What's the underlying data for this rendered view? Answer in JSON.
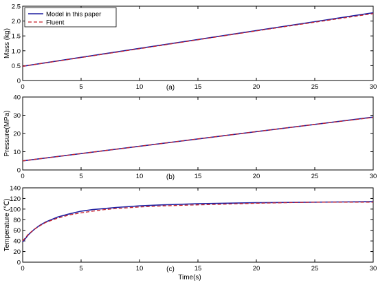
{
  "colors": {
    "model": "#1f1fa0",
    "fluent": "#c8202a",
    "axis": "#000000",
    "background": "#ffffff"
  },
  "chart_data": [
    {
      "type": "line",
      "panel_label": "(a)",
      "xlabel": "",
      "ylabel": "Mass (kg)",
      "xlim": [
        0,
        30
      ],
      "ylim": [
        0,
        2.5
      ],
      "xticks": [
        0,
        5,
        10,
        15,
        20,
        25,
        30
      ],
      "yticks": [
        0,
        0.5,
        1.0,
        1.5,
        2.0,
        2.5
      ],
      "ytick_labels": [
        "0",
        "0.5",
        "1.0",
        "1.5",
        "2.0",
        "2.5"
      ],
      "grid": false,
      "legend": {
        "placement": "top-left",
        "entries": [
          "Model in this paper",
          "Fluent"
        ]
      },
      "series": [
        {
          "name": "Model in this paper",
          "style": "solid",
          "x": [
            0,
            5,
            10,
            15,
            20,
            25,
            30
          ],
          "y": [
            0.48,
            0.78,
            1.08,
            1.38,
            1.68,
            1.98,
            2.28
          ]
        },
        {
          "name": "Fluent",
          "style": "dashed",
          "x": [
            0,
            5,
            10,
            15,
            20,
            25,
            30
          ],
          "y": [
            0.48,
            0.77,
            1.07,
            1.37,
            1.67,
            1.96,
            2.25
          ]
        }
      ]
    },
    {
      "type": "line",
      "panel_label": "(b)",
      "xlabel": "",
      "ylabel": "Pressure(MPa)",
      "xlim": [
        0,
        30
      ],
      "ylim": [
        0,
        40
      ],
      "xticks": [
        0,
        5,
        10,
        15,
        20,
        25,
        30
      ],
      "yticks": [
        0,
        10,
        20,
        30,
        40
      ],
      "ytick_labels": [
        "0",
        "10",
        "20",
        "30",
        "40"
      ],
      "grid": false,
      "series": [
        {
          "name": "Model in this paper",
          "style": "solid",
          "x": [
            0,
            5,
            10,
            15,
            20,
            25,
            30
          ],
          "y": [
            5.0,
            9.0,
            13.0,
            17.0,
            21.0,
            25.0,
            29.0
          ]
        },
        {
          "name": "Fluent",
          "style": "dashed",
          "x": [
            0,
            5,
            10,
            15,
            20,
            25,
            30
          ],
          "y": [
            5.0,
            9.0,
            13.0,
            17.0,
            21.0,
            25.0,
            28.8
          ]
        }
      ]
    },
    {
      "type": "line",
      "panel_label": "(c)",
      "xlabel": "Time(s)",
      "ylabel": "Temperature (℃)",
      "xlim": [
        0,
        30
      ],
      "ylim": [
        0,
        140
      ],
      "xticks": [
        0,
        5,
        10,
        15,
        20,
        25,
        30
      ],
      "yticks": [
        0,
        20,
        40,
        60,
        80,
        100,
        120,
        140
      ],
      "ytick_labels": [
        "0",
        "20",
        "40",
        "60",
        "80",
        "100",
        "120",
        "140"
      ],
      "grid": false,
      "series": [
        {
          "name": "Model in this paper",
          "style": "solid",
          "x": [
            0,
            0.5,
            1,
            1.5,
            2,
            3,
            4,
            5,
            6,
            7,
            8,
            10,
            12,
            15,
            20,
            25,
            30
          ],
          "y": [
            38,
            52,
            62,
            70,
            76,
            85,
            91,
            96,
            99,
            101,
            103,
            106,
            108,
            110,
            112,
            113,
            114
          ]
        },
        {
          "name": "Fluent",
          "style": "dashed",
          "x": [
            0,
            0.5,
            1,
            1.5,
            2,
            3,
            4,
            5,
            6,
            7,
            8,
            10,
            12,
            15,
            20,
            25,
            30
          ],
          "y": [
            40,
            53,
            62,
            69,
            75,
            83,
            89,
            93,
            96,
            99,
            101,
            104,
            106,
            108,
            111,
            113,
            113
          ]
        }
      ]
    }
  ]
}
